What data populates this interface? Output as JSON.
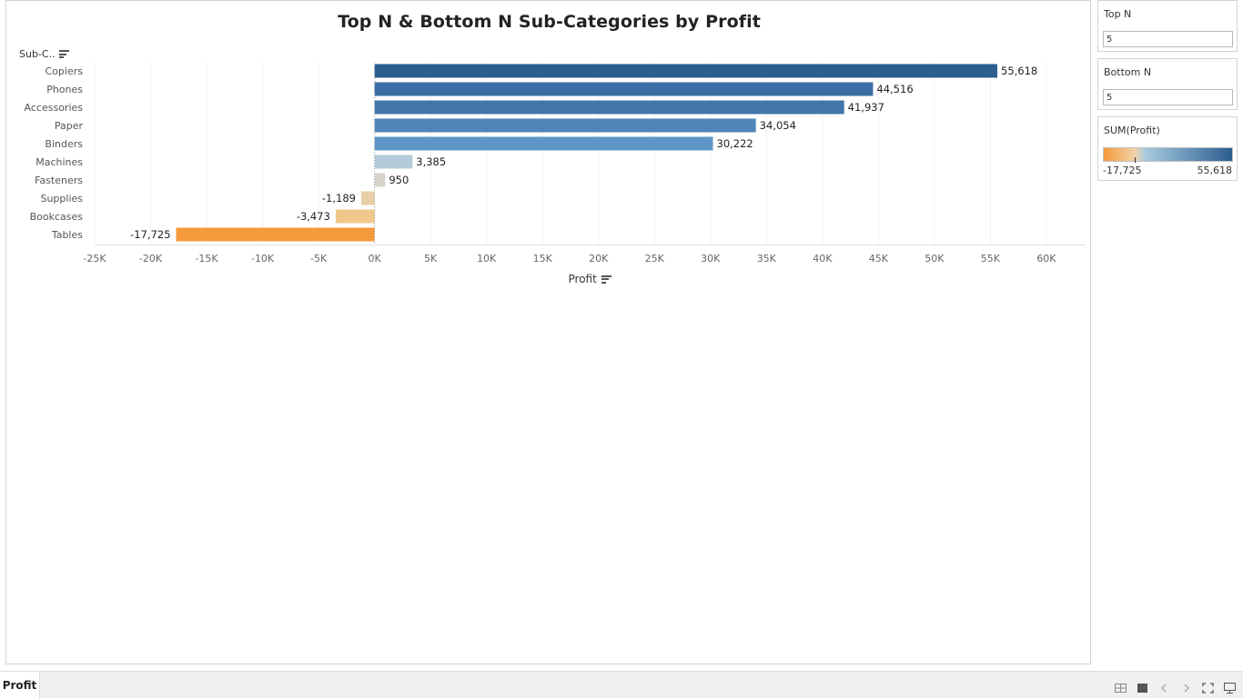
{
  "chart_data": {
    "type": "bar",
    "orientation": "horizontal",
    "title": "Top N & Bottom N Sub-Categories by Profit",
    "row_header": "Sub-C..",
    "xlabel": "Profit",
    "categories": [
      "Copiers",
      "Phones",
      "Accessories",
      "Paper",
      "Binders",
      "Machines",
      "Fasteners",
      "Supplies",
      "Bookcases",
      "Tables"
    ],
    "values": [
      55618,
      44516,
      41937,
      34054,
      30222,
      3385,
      950,
      -1189,
      -3473,
      -17725
    ],
    "value_labels": [
      "55,618",
      "44,516",
      "41,937",
      "34,054",
      "30,222",
      "3,385",
      "950",
      "-1,189",
      "-3,473",
      "-17,725"
    ],
    "bar_colors": [
      "#2c5d8f",
      "#3a6ea4",
      "#4276aa",
      "#4f85b8",
      "#5f95c6",
      "#b2ccd9",
      "#d8d4cd",
      "#e8cfa8",
      "#f2c78b",
      "#f59a3b"
    ],
    "xlim": [
      -25000,
      63500
    ],
    "x_ticks": [
      -25000,
      -20000,
      -15000,
      -10000,
      -5000,
      0,
      5000,
      10000,
      15000,
      20000,
      25000,
      30000,
      35000,
      40000,
      45000,
      50000,
      55000,
      60000
    ],
    "x_tick_labels": [
      "-25K",
      "-20K",
      "-15K",
      "-10K",
      "-5K",
      "0K",
      "5K",
      "10K",
      "15K",
      "20K",
      "25K",
      "30K",
      "35K",
      "40K",
      "45K",
      "50K",
      "55K",
      "60K"
    ],
    "grid": true
  },
  "filters": {
    "top_n": {
      "title": "Top N",
      "value": "5"
    },
    "bottom_n": {
      "title": "Bottom N",
      "value": "5"
    }
  },
  "legend": {
    "title": "SUM(Profit)",
    "min_label": "-17,725",
    "max_label": "55,618",
    "min": -17725,
    "max": 55618,
    "gradient_colors": [
      "#f59a3b",
      "#f2d2a8",
      "#a7cbe0",
      "#2c5d8f"
    ]
  },
  "sheet_tab": {
    "label": "Profit"
  },
  "toolbar_icons": [
    "grid-view-icon",
    "single-view-icon",
    "previous-icon",
    "next-icon",
    "fullscreen-icon",
    "presentation-icon"
  ]
}
